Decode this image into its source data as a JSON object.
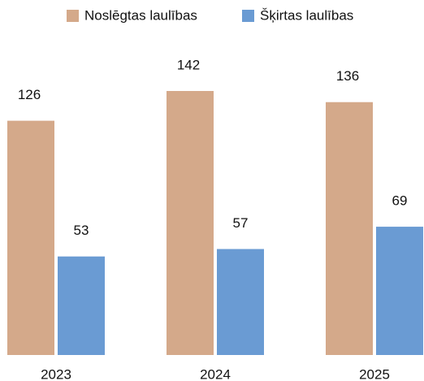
{
  "chart_data": {
    "type": "bar",
    "categories": [
      "2023",
      "2024",
      "2025"
    ],
    "series": [
      {
        "name": "Noslēgtas laulības",
        "color": "#d4a98a",
        "values": [
          126,
          142,
          136
        ]
      },
      {
        "name": "Šķirtas laulības",
        "color": "#6a9bd3",
        "values": [
          53,
          57,
          69
        ]
      }
    ],
    "legend": "top"
  }
}
